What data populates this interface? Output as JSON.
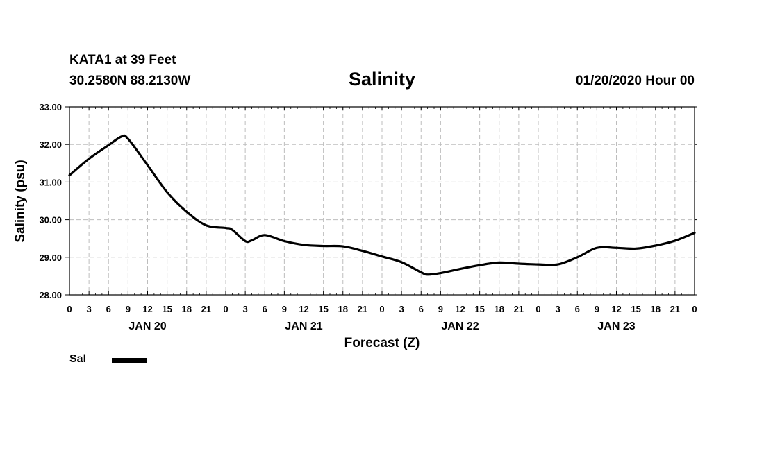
{
  "header": {
    "station": "KATA1 at 39 Feet",
    "coords": "30.2580N 88.2130W",
    "title": "Salinity",
    "date": "01/20/2020 Hour 00"
  },
  "legend": {
    "label": "Sal",
    "color": "#000000"
  },
  "chart_data": {
    "type": "line",
    "title": "Salinity",
    "xlabel": "Forecast (Z)",
    "ylabel": "Salinity (psu)",
    "ylim": [
      28.0,
      33.0
    ],
    "yticks": [
      "28.00",
      "29.00",
      "30.00",
      "31.00",
      "32.00",
      "33.00"
    ],
    "xlim_hours": [
      0,
      96
    ],
    "xtick_labels": [
      "0",
      "3",
      "6",
      "9",
      "12",
      "15",
      "18",
      "21",
      "0",
      "3",
      "6",
      "9",
      "12",
      "15",
      "18",
      "21",
      "0",
      "3",
      "6",
      "9",
      "12",
      "15",
      "18",
      "21",
      "0",
      "3",
      "6",
      "9",
      "12",
      "15",
      "18",
      "21",
      "0"
    ],
    "day_labels": [
      {
        "label": "JAN 20",
        "hour": 12
      },
      {
        "label": "JAN 21",
        "hour": 36
      },
      {
        "label": "JAN 22",
        "hour": 60
      },
      {
        "label": "JAN 23",
        "hour": 84
      }
    ],
    "grid": true,
    "series": [
      {
        "name": "Sal",
        "x_hours": [
          0,
          3,
          6,
          8,
          9,
          12,
          15,
          18,
          21,
          24,
          25,
          27,
          28,
          30,
          33,
          36,
          39,
          42,
          45,
          48,
          51,
          54,
          55,
          57,
          60,
          63,
          66,
          69,
          72,
          75,
          78,
          81,
          84,
          87,
          90,
          93,
          96
        ],
        "values": [
          31.18,
          31.62,
          31.98,
          32.21,
          32.15,
          31.45,
          30.73,
          30.21,
          29.85,
          29.78,
          29.73,
          29.43,
          29.45,
          29.59,
          29.43,
          29.33,
          29.3,
          29.29,
          29.17,
          29.02,
          28.87,
          28.6,
          28.54,
          28.58,
          28.69,
          28.79,
          28.86,
          28.83,
          28.81,
          28.81,
          29.0,
          29.25,
          29.25,
          29.23,
          29.31,
          29.44,
          29.65
        ],
        "color": "#000000"
      }
    ]
  }
}
